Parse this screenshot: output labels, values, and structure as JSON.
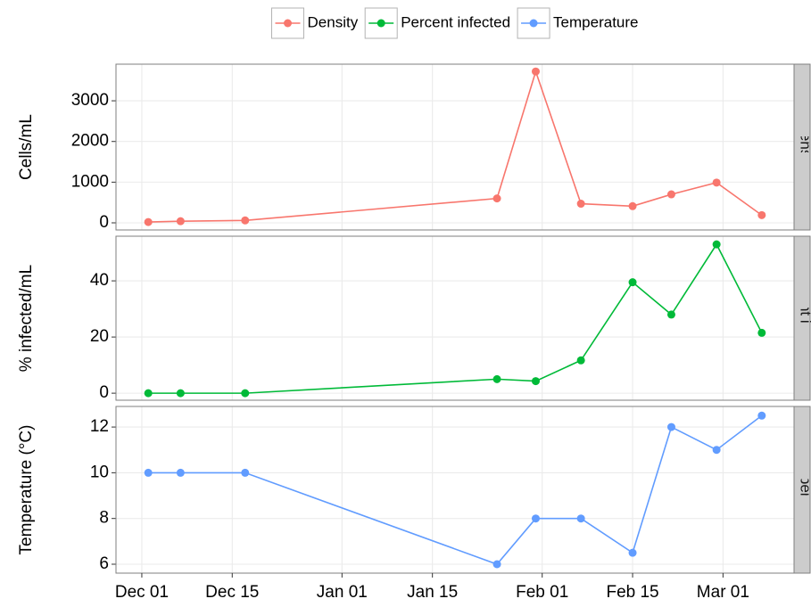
{
  "chart_data": {
    "type": "line",
    "x": [
      1,
      6,
      16,
      55,
      61,
      68,
      76,
      82,
      89,
      96
    ],
    "xlim": [
      -4,
      101
    ],
    "xticks": [
      {
        "value": 0,
        "label": "Dec 01"
      },
      {
        "value": 14,
        "label": "Dec 15"
      },
      {
        "value": 31,
        "label": "Jan 01"
      },
      {
        "value": 45,
        "label": "Jan 15"
      },
      {
        "value": 62,
        "label": "Feb 01"
      },
      {
        "value": 76,
        "label": "Feb 15"
      },
      {
        "value": 90,
        "label": "Mar 01"
      }
    ],
    "grid": true,
    "legend": "top",
    "panels": [
      {
        "ylabel": "Cells/mL",
        "ylim": [
          -175,
          3900
        ],
        "yticks": [
          0,
          1000,
          2000,
          3000
        ],
        "series": [
          {
            "name": "Density",
            "color": "#F8766D",
            "values": [
              20,
              40,
              60,
              600,
              3720,
              470,
              410,
              700,
              990,
              190
            ]
          }
        ]
      },
      {
        "ylabel": "% infected/mL",
        "ylim": [
          -2.5,
          55.9
        ],
        "yticks": [
          0,
          20,
          40
        ],
        "series": [
          {
            "name": "Percent infected",
            "color": "#00BA38",
            "values": [
              0,
              0,
              0,
              5,
              4.3,
              11.7,
              39.5,
              28,
              53,
              21.5
            ]
          }
        ]
      },
      {
        "ylabel": "Temperature (°C)",
        "ylim": [
          5.61,
          12.9
        ],
        "yticks": [
          6,
          8,
          10,
          12
        ],
        "series": [
          {
            "name": "Temperature",
            "color": "#619CFF",
            "values": [
              10,
              10,
              10,
              6,
              8,
              8,
              6.5,
              12,
              11,
              12.5
            ]
          }
        ]
      }
    ]
  }
}
